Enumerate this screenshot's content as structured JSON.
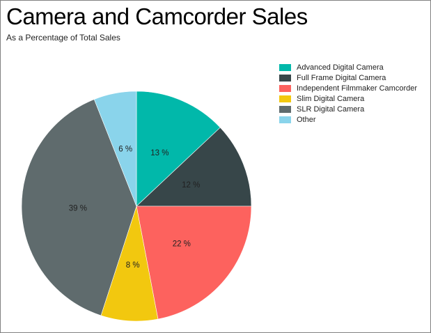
{
  "header": {
    "title": "Camera and Camcorder Sales",
    "subtitle": "As a Percentage of Total Sales"
  },
  "chart_data": {
    "type": "pie",
    "title": "Camera and Camcorder Sales",
    "subtitle": "As a Percentage of Total Sales",
    "categories": [
      "Advanced Digital Camera",
      "Full Frame Digital Camera",
      "Independent Filmmaker Camcorder",
      "Slim Digital Camera",
      "SLR Digital Camera",
      "Other"
    ],
    "values": [
      13,
      12,
      22,
      8,
      39,
      6
    ],
    "labels": [
      "13 %",
      "12 %",
      "22 %",
      "8 %",
      "39 %",
      "6 %"
    ],
    "colors": [
      "#01B8AA",
      "#374649",
      "#FD625E",
      "#F2C80F",
      "#5F6B6D",
      "#8AD4EB"
    ],
    "unit": "%",
    "start_angle_deg": 0,
    "direction": "clockwise",
    "legend_position": "top-right",
    "label_color": "#212121"
  },
  "legend": {
    "items": [
      {
        "label": "Advanced Digital Camera",
        "color": "#01B8AA"
      },
      {
        "label": "Full Frame Digital Camera",
        "color": "#374649"
      },
      {
        "label": "Independent Filmmaker Camcorder",
        "color": "#FD625E"
      },
      {
        "label": "Slim Digital Camera",
        "color": "#F2C80F"
      },
      {
        "label": "SLR Digital Camera",
        "color": "#5F6B6D"
      },
      {
        "label": "Other",
        "color": "#8AD4EB"
      }
    ]
  }
}
